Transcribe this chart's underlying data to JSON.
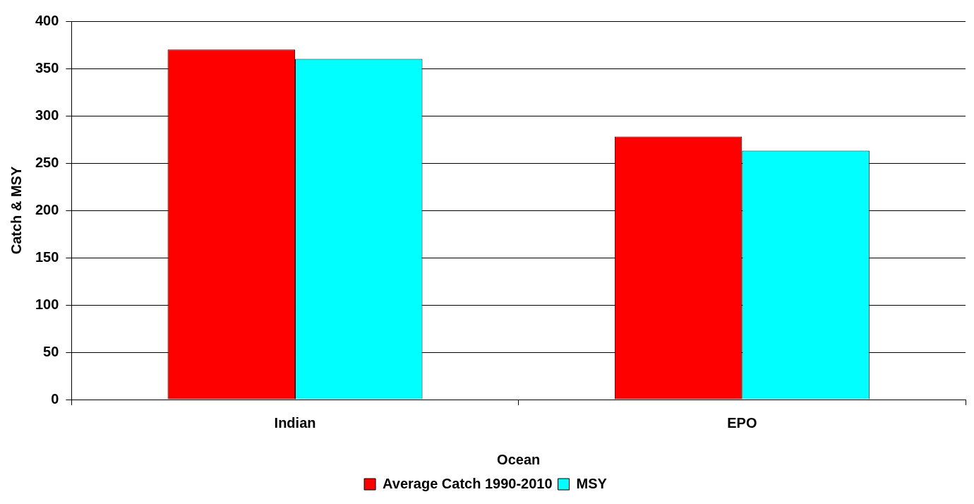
{
  "chart_data": {
    "type": "bar",
    "xlabel": "Ocean",
    "ylabel": "Catch & MSY",
    "categories": [
      "Indian",
      "EPO"
    ],
    "series": [
      {
        "name": "Average Catch 1990-2010",
        "color": "#ff0000",
        "values": [
          370,
          278
        ]
      },
      {
        "name": "MSY",
        "color": "#00ffff",
        "values": [
          360,
          263
        ]
      }
    ],
    "ylim": [
      0,
      400
    ],
    "yticks": [
      0,
      50,
      100,
      150,
      200,
      250,
      300,
      350,
      400
    ],
    "grid": "y",
    "legend": "bottom"
  }
}
